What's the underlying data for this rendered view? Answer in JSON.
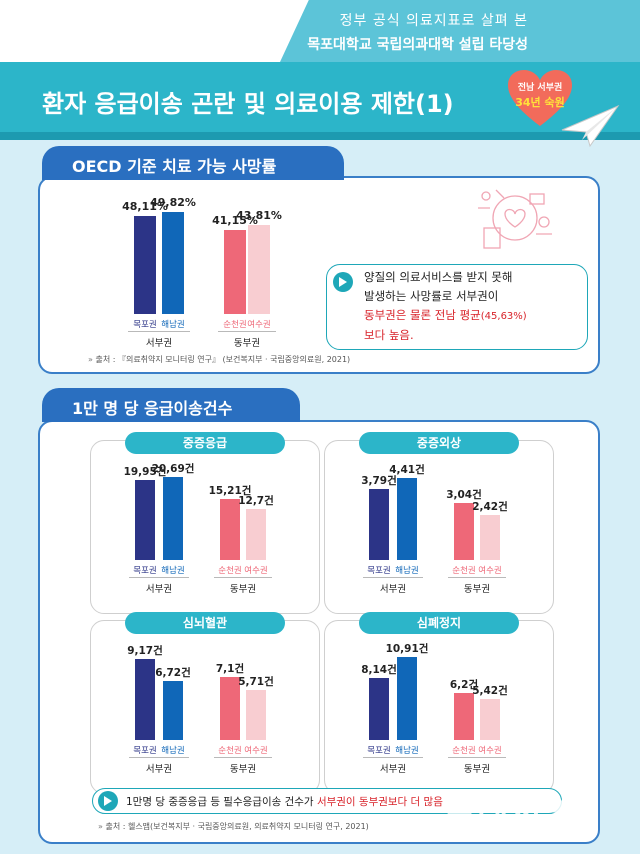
{
  "header": {
    "line1": "정부 공식 의료지표로 살펴 본",
    "line2": "목포대학교 국립의과대학 설립 타당성"
  },
  "title": "환자 응급이송 곤란 및 의료이용 제한(1)",
  "badge": {
    "line1": "전남 서부권",
    "line2": "34년 숙원"
  },
  "colors": {
    "west1": "#2c3487",
    "west2": "#1067b8",
    "east1": "#ee6878",
    "east2": "#f8cdd1"
  },
  "oecd": {
    "tab": "OECD 기준 치료 가능 사망률",
    "callout": {
      "line1": "양질의 의료서비스를 받지 못해",
      "line2": "발생하는 사망률로 서부권이",
      "line3a": "동부권은 물론 전남 평균",
      "line3b": "(45,63%)",
      "line4": "보다 높음."
    },
    "source": "출처 : 『의료취약지 모니터링 연구』 (보건복지부 · 국립중앙의료원, 2021)"
  },
  "emergency": {
    "tab": "1만 명 당 응급이송건수",
    "callout": {
      "text_a": "1만명 당 중증응급 등 필수응급이송 건수가 ",
      "text_b": "서부권이 동부권보다 더 많음"
    },
    "source": "출처 : 헬스맵(보건복지부 · 국립중앙의료원, 의료취약지 모니터링 연구, 2021)"
  },
  "chart_data": [
    {
      "type": "bar",
      "title": "OECD 기준 치료 가능 사망률",
      "categories": [
        "목포권",
        "해남권",
        "순천권",
        "여수권"
      ],
      "groups": [
        "서부권",
        "서부권",
        "동부권",
        "동부권"
      ],
      "values": [
        48.11,
        49.82,
        41.15,
        43.81
      ],
      "labels": [
        "48,11%",
        "49,82%",
        "41,15%",
        "43,81%"
      ],
      "ylim": [
        0,
        50
      ]
    },
    {
      "type": "bar",
      "title": "중증응급",
      "categories": [
        "목포권",
        "해남권",
        "순천권",
        "여수권"
      ],
      "groups": [
        "서부권",
        "서부권",
        "동부권",
        "동부권"
      ],
      "values": [
        19.95,
        20.69,
        15.21,
        12.7
      ],
      "labels": [
        "19,95건",
        "20,69건",
        "15,21건",
        "12,7건"
      ],
      "ylim": [
        0,
        21
      ]
    },
    {
      "type": "bar",
      "title": "중증외상",
      "categories": [
        "목포권",
        "해남권",
        "순천권",
        "여수권"
      ],
      "groups": [
        "서부권",
        "서부권",
        "동부권",
        "동부권"
      ],
      "values": [
        3.79,
        4.41,
        3.04,
        2.42
      ],
      "labels": [
        "3,79건",
        "4,41건",
        "3,04건",
        "2,42건"
      ],
      "ylim": [
        0,
        4.5
      ]
    },
    {
      "type": "bar",
      "title": "심뇌혈관",
      "categories": [
        "목포권",
        "해남권",
        "순천권",
        "여수권"
      ],
      "groups": [
        "서부권",
        "서부권",
        "동부권",
        "동부권"
      ],
      "values": [
        9.17,
        6.72,
        7.1,
        5.71
      ],
      "labels": [
        "9,17건",
        "6,72건",
        "7,1건",
        "5,71건"
      ],
      "ylim": [
        0,
        9.5
      ]
    },
    {
      "type": "bar",
      "title": "심폐정지",
      "categories": [
        "목포권",
        "해남권",
        "순천권",
        "여수권"
      ],
      "groups": [
        "서부권",
        "서부권",
        "동부권",
        "동부권"
      ],
      "values": [
        8.14,
        10.91,
        6.2,
        5.42
      ],
      "labels": [
        "8,14건",
        "10,91건",
        "6,2건",
        "5,42건"
      ],
      "ylim": [
        0,
        11
      ]
    }
  ],
  "watermark": {
    "logo": "프레시안",
    "url": "pressian.com"
  }
}
